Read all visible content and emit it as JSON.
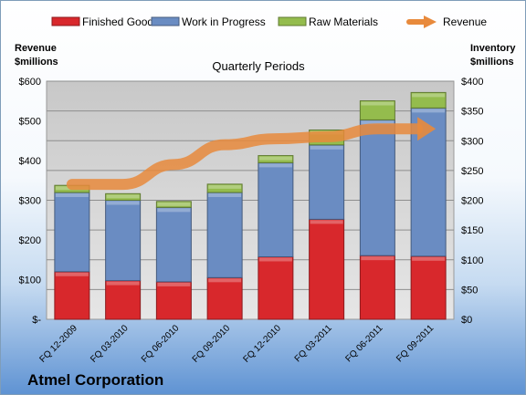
{
  "chart_data": {
    "type": "bar",
    "stacked": true,
    "subtitle": "Quarterly Periods",
    "company": "Atmel Corporation",
    "categories": [
      "FQ 12-2009",
      "FQ 03-2010",
      "FQ 06-2010",
      "FQ 09-2010",
      "FQ 12-2010",
      "FQ 03-2011",
      "FQ 06-2011",
      "FQ 09-2011"
    ],
    "left_axis": {
      "label_line1": "Revenue",
      "label_line2": "$millions",
      "ticks": [
        "$-",
        "$100",
        "$200",
        "$300",
        "$400",
        "$500",
        "$600"
      ],
      "ylim": [
        0,
        600
      ]
    },
    "right_axis": {
      "label_line1": "Inventory",
      "label_line2": "$millions",
      "ticks": [
        "$0",
        "$50",
        "$100",
        "$150",
        "$200",
        "$250",
        "$300",
        "$350",
        "$400"
      ],
      "ylim": [
        0,
        400
      ]
    },
    "series": [
      {
        "name": "Finished Goods",
        "axis": "right",
        "color": "#d8282c",
        "values": [
          80,
          65,
          63,
          70,
          105,
          168,
          107,
          106
        ]
      },
      {
        "name": "Work in Progress",
        "axis": "right",
        "color": "#6a8cc2",
        "values": [
          133,
          135,
          125,
          143,
          158,
          125,
          228,
          249
        ]
      },
      {
        "name": "Raw Materials",
        "axis": "right",
        "color": "#94bc4d",
        "values": [
          12,
          11,
          10,
          14,
          12,
          25,
          32,
          26
        ]
      }
    ],
    "line_series": {
      "name": "Revenue",
      "axis": "left",
      "color": "#e88a3c",
      "values": [
        340,
        340,
        390,
        440,
        455,
        460,
        480,
        480
      ]
    },
    "grid": true,
    "legend_position": "top"
  }
}
